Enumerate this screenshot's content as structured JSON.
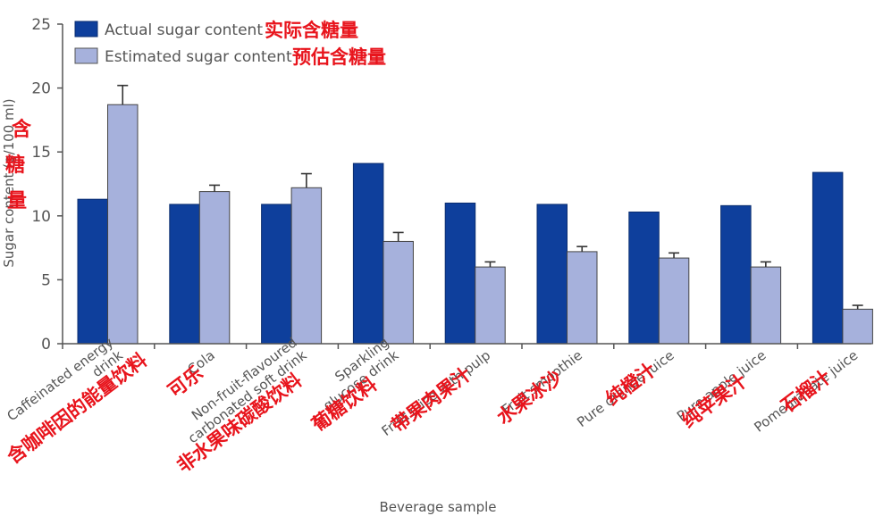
{
  "chart_data": {
    "type": "bar",
    "xlabel": "Beverage sample",
    "ylabel": "Sugar content (g/100 ml)",
    "ylabel_annotation": [
      "含",
      "糖",
      "量"
    ],
    "ylim": [
      0,
      25
    ],
    "yticks": [
      0,
      5,
      10,
      15,
      20,
      25
    ],
    "grid": false,
    "legend_position": "top-left",
    "categories": [
      "Caffeinated energy drink",
      "Cola",
      "Non-fruit-flavoured carbonated soft drink",
      "Sparkling glucose drink",
      "Fruit juice with pulp",
      "Fruit smoothie",
      "Pure orange juice",
      "Pure apple juice",
      "Pomegranate juice"
    ],
    "category_labels_visible": [
      [
        "Caffeinated energy",
        "drink"
      ],
      [
        "Cola"
      ],
      [
        "Non-fruit-flavoured",
        "carbonated soft drink"
      ],
      [
        "Sparkling",
        "glucose drink"
      ],
      [
        "Fruit juice with pulp"
      ],
      [
        "Fruit smoothie"
      ],
      [
        "Pure orange juice"
      ],
      [
        "Pure apple juice"
      ],
      [
        "Pomegranate juice"
      ]
    ],
    "category_annotations": [
      "含咖啡因的能量饮料",
      "可乐",
      "非水果味碳酸饮料",
      "葡糖饮料",
      "带果肉果汁",
      "水果冰沙",
      "纯橙汁",
      "纯苹果汁",
      "石榴汁"
    ],
    "series": [
      {
        "name": "Actual sugar content",
        "name_annotation": "实际含糖量",
        "color": "#0e3f9c",
        "values": [
          11.3,
          10.9,
          10.9,
          14.1,
          11.0,
          10.9,
          10.3,
          10.8,
          13.4
        ]
      },
      {
        "name": "Estimated sugar content",
        "name_annotation": "预估含糖量",
        "color": "#a6b1dc",
        "values": [
          18.7,
          11.9,
          12.2,
          8.0,
          6.0,
          7.2,
          6.7,
          6.0,
          2.7
        ],
        "errors": [
          1.5,
          0.5,
          1.1,
          0.7,
          0.4,
          0.4,
          0.4,
          0.4,
          0.3
        ]
      }
    ]
  }
}
